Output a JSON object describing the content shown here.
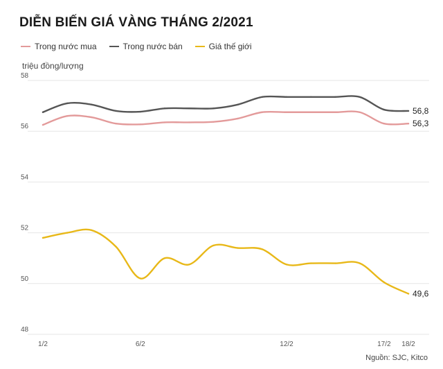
{
  "header": {
    "title": "DIỄN BIẾN GIÁ VÀNG THÁNG 2/2021",
    "unit": "triệu đồng/lượng",
    "source": "Nguồn: SJC, Kitco"
  },
  "legend": [
    {
      "name": "Trong nước mua",
      "color": "#e39a9a"
    },
    {
      "name": "Trong nước bán",
      "color": "#555555"
    },
    {
      "name": "Giá thế giới",
      "color": "#e8b818"
    }
  ],
  "chart_data": {
    "type": "line",
    "title": "DIỄN BIẾN GIÁ VÀNG THÁNG 2/2021",
    "ylabel": "triệu đồng/lượng",
    "ylim": [
      48,
      58
    ],
    "yticks": [
      "48",
      "50",
      "52",
      "54",
      "56",
      "58"
    ],
    "xticks": [
      {
        "label": "1/2",
        "index": 0
      },
      {
        "label": "6/2",
        "index": 4
      },
      {
        "label": "12/2",
        "index": 10
      },
      {
        "label": "17/2",
        "index": 14
      },
      {
        "label": "18/2",
        "index": 15
      }
    ],
    "grid": true,
    "series": [
      {
        "name": "Trong nước mua",
        "color": "#e39a9a",
        "end_label": "56,3",
        "values": [
          56.25,
          56.6,
          56.55,
          56.3,
          56.27,
          56.35,
          56.35,
          56.37,
          56.5,
          56.75,
          56.75,
          56.75,
          56.75,
          56.75,
          56.3,
          56.3
        ]
      },
      {
        "name": "Trong nước bán",
        "color": "#555555",
        "end_label": "56,8",
        "values": [
          56.75,
          57.1,
          57.05,
          56.8,
          56.77,
          56.9,
          56.9,
          56.9,
          57.05,
          57.35,
          57.35,
          57.35,
          57.35,
          57.35,
          56.85,
          56.8
        ]
      },
      {
        "name": "Giá thế giới",
        "color": "#e8b818",
        "end_label": "49,6",
        "values": [
          51.8,
          52.0,
          52.1,
          51.45,
          50.2,
          51.0,
          50.75,
          51.5,
          51.4,
          51.35,
          50.75,
          50.8,
          50.8,
          50.8,
          50.05,
          49.6
        ]
      }
    ]
  }
}
